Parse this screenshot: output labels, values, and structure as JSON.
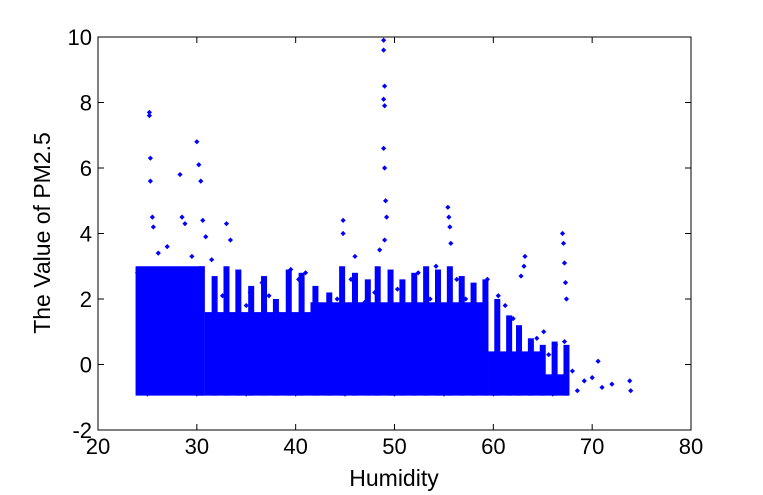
{
  "chart_data": {
    "type": "scatter",
    "title": "",
    "xlabel": "Humidity",
    "ylabel": "The Value of PM2.5",
    "xlim": [
      20,
      80
    ],
    "ylim": [
      -2,
      10
    ],
    "xticks": [
      20,
      30,
      40,
      50,
      60,
      70,
      80
    ],
    "yticks": [
      -2,
      0,
      2,
      4,
      6,
      8,
      10
    ],
    "grid": false,
    "legend": "none",
    "series": [
      {
        "color": "#0000ff",
        "marker": "diamond",
        "points": [
          [
            24.0,
            2.8
          ],
          [
            24.5,
            1.6
          ],
          [
            25.2,
            7.7
          ],
          [
            25.2,
            7.6
          ],
          [
            25.3,
            6.3
          ],
          [
            25.3,
            5.6
          ],
          [
            25.5,
            4.5
          ],
          [
            25.6,
            4.2
          ],
          [
            26.1,
            3.4
          ],
          [
            26.5,
            2.6
          ],
          [
            27.0,
            3.6
          ],
          [
            28.3,
            5.8
          ],
          [
            28.5,
            4.5
          ],
          [
            28.8,
            4.3
          ],
          [
            29.5,
            3.3
          ],
          [
            30.0,
            6.8
          ],
          [
            30.2,
            6.1
          ],
          [
            30.4,
            5.6
          ],
          [
            30.6,
            4.4
          ],
          [
            30.9,
            3.9
          ],
          [
            31.5,
            3.2
          ],
          [
            32.6,
            2.1
          ],
          [
            33.0,
            4.3
          ],
          [
            33.4,
            3.8
          ],
          [
            34.2,
            2.5
          ],
          [
            35.0,
            1.8
          ],
          [
            35.4,
            2.2
          ],
          [
            36.6,
            2.5
          ],
          [
            37.3,
            2.1
          ],
          [
            38.1,
            1.6
          ],
          [
            39.5,
            2.9
          ],
          [
            40.3,
            2.6
          ],
          [
            41.0,
            2.8
          ],
          [
            42.4,
            1.4
          ],
          [
            44.2,
            2.0
          ],
          [
            44.8,
            4.4
          ],
          [
            44.8,
            4.0
          ],
          [
            45.6,
            2.6
          ],
          [
            46.0,
            3.3
          ],
          [
            47.0,
            1.9
          ],
          [
            48.0,
            2.2
          ],
          [
            48.9,
            9.9
          ],
          [
            48.9,
            9.6
          ],
          [
            49.0,
            8.5
          ],
          [
            48.9,
            8.1
          ],
          [
            49.0,
            7.9
          ],
          [
            48.9,
            6.6
          ],
          [
            49.0,
            6.0
          ],
          [
            49.1,
            5.0
          ],
          [
            49.2,
            4.5
          ],
          [
            48.5,
            3.5
          ],
          [
            49.0,
            3.8
          ],
          [
            50.3,
            2.3
          ],
          [
            51.2,
            1.8
          ],
          [
            52.4,
            2.8
          ],
          [
            53.6,
            2.0
          ],
          [
            54.2,
            3.0
          ],
          [
            55.4,
            4.8
          ],
          [
            55.5,
            4.5
          ],
          [
            55.6,
            4.2
          ],
          [
            55.7,
            3.7
          ],
          [
            56.3,
            2.6
          ],
          [
            57.2,
            2.0
          ],
          [
            58.0,
            1.7
          ],
          [
            59.4,
            2.6
          ],
          [
            60.5,
            2.1
          ],
          [
            61.2,
            1.8
          ],
          [
            62.0,
            1.4
          ],
          [
            62.8,
            2.7
          ],
          [
            63.2,
            3.3
          ],
          [
            63.1,
            3.0
          ],
          [
            64.4,
            0.8
          ],
          [
            65.1,
            1.0
          ],
          [
            65.6,
            0.3
          ],
          [
            66.3,
            0.6
          ],
          [
            67.0,
            4.0
          ],
          [
            67.1,
            3.7
          ],
          [
            67.2,
            3.1
          ],
          [
            67.3,
            2.5
          ],
          [
            67.4,
            2.0
          ],
          [
            67.2,
            0.7
          ],
          [
            68.0,
            -0.2
          ],
          [
            69.2,
            -0.5
          ],
          [
            70.0,
            -0.4
          ],
          [
            70.6,
            0.1
          ],
          [
            71.0,
            -0.7
          ],
          [
            72.0,
            -0.6
          ],
          [
            73.8,
            -0.5
          ],
          [
            73.9,
            -0.8
          ],
          [
            68.5,
            -0.8
          ],
          [
            66.0,
            -0.9
          ],
          [
            64.0,
            -0.6
          ],
          [
            60.0,
            -0.9
          ],
          [
            55.0,
            -0.9
          ],
          [
            50.0,
            -0.9
          ],
          [
            45.0,
            -0.9
          ],
          [
            40.0,
            -0.9
          ],
          [
            35.0,
            -0.9
          ],
          [
            30.0,
            -0.9
          ],
          [
            25.0,
            -0.9
          ]
        ]
      }
    ],
    "dense_regions": [
      {
        "x": [
          23.8,
          30.8
        ],
        "y": [
          -0.95,
          3.0
        ]
      },
      {
        "x": [
          30.8,
          41.5
        ],
        "y": [
          -0.95,
          1.6
        ]
      },
      {
        "x": [
          41.5,
          59.5
        ],
        "y": [
          -0.95,
          1.9
        ]
      },
      {
        "x": [
          59.5,
          65.0
        ],
        "y": [
          -0.95,
          0.4
        ]
      },
      {
        "x": [
          65.0,
          67.5
        ],
        "y": [
          -0.95,
          -0.3
        ]
      }
    ],
    "dense_spikes": [
      {
        "x": 30.5,
        "y_top": 3.0
      },
      {
        "x": 31.8,
        "y_top": 2.7
      },
      {
        "x": 33.0,
        "y_top": 3.0
      },
      {
        "x": 34.2,
        "y_top": 2.9
      },
      {
        "x": 35.5,
        "y_top": 2.4
      },
      {
        "x": 36.8,
        "y_top": 2.7
      },
      {
        "x": 38.0,
        "y_top": 2.0
      },
      {
        "x": 39.3,
        "y_top": 2.9
      },
      {
        "x": 40.6,
        "y_top": 2.8
      },
      {
        "x": 42.0,
        "y_top": 2.4
      },
      {
        "x": 43.4,
        "y_top": 2.2
      },
      {
        "x": 44.7,
        "y_top": 3.0
      },
      {
        "x": 46.0,
        "y_top": 2.8
      },
      {
        "x": 47.3,
        "y_top": 2.6
      },
      {
        "x": 48.3,
        "y_top": 3.0
      },
      {
        "x": 49.6,
        "y_top": 2.9
      },
      {
        "x": 50.8,
        "y_top": 2.6
      },
      {
        "x": 52.0,
        "y_top": 2.8
      },
      {
        "x": 53.2,
        "y_top": 3.0
      },
      {
        "x": 54.4,
        "y_top": 2.9
      },
      {
        "x": 55.6,
        "y_top": 3.0
      },
      {
        "x": 56.8,
        "y_top": 2.7
      },
      {
        "x": 58.0,
        "y_top": 2.5
      },
      {
        "x": 59.2,
        "y_top": 2.6
      },
      {
        "x": 60.4,
        "y_top": 2.0
      },
      {
        "x": 61.6,
        "y_top": 1.5
      },
      {
        "x": 62.6,
        "y_top": 1.2
      },
      {
        "x": 63.8,
        "y_top": 0.8
      },
      {
        "x": 65.0,
        "y_top": 0.6
      },
      {
        "x": 66.2,
        "y_top": 0.7
      },
      {
        "x": 67.4,
        "y_top": 0.6
      }
    ]
  }
}
